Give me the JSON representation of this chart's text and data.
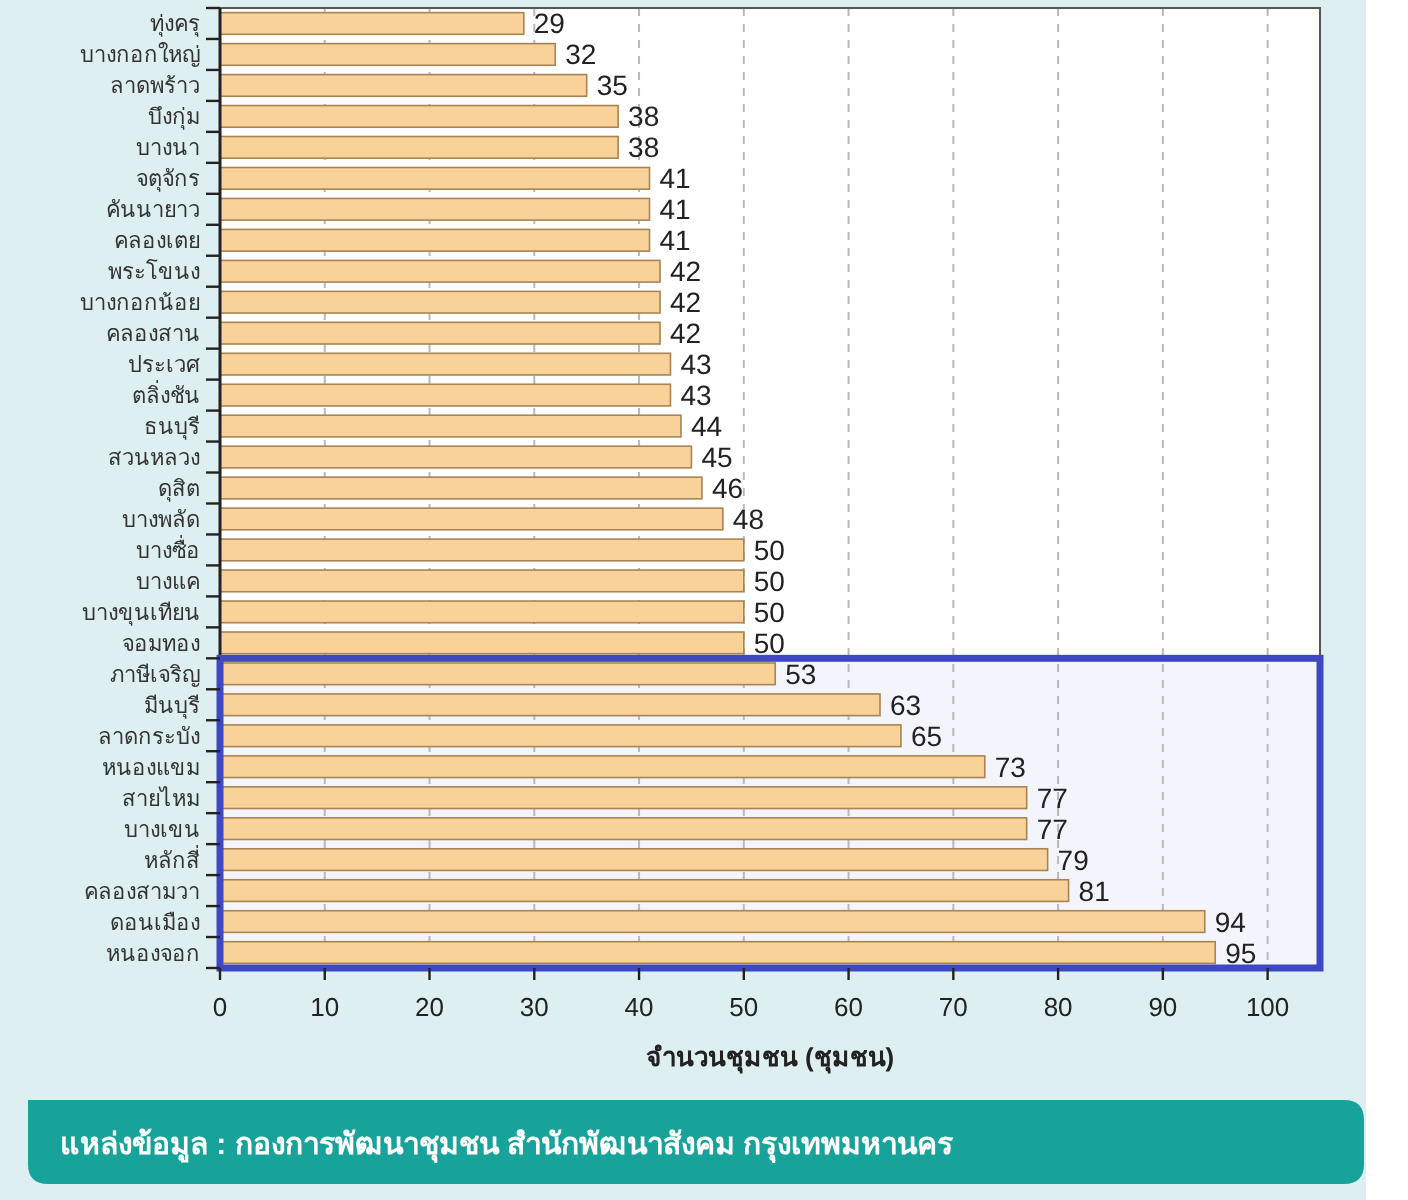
{
  "chart_data": {
    "type": "bar",
    "orientation": "horizontal",
    "categories": [
      "ทุ่งครุ",
      "บางกอกใหญ่",
      "ลาดพร้าว",
      "บึงกุ่ม",
      "บางนา",
      "จตุจักร",
      "คันนายาว",
      "คลองเตย",
      "พระโขนง",
      "บางกอกน้อย",
      "คลองสาน",
      "ประเวศ",
      "ตลิ่งชัน",
      "ธนบุรี",
      "สวนหลวง",
      "ดุสิต",
      "บางพลัด",
      "บางซื่อ",
      "บางแค",
      "บางขุนเทียน",
      "จอมทอง",
      "ภาษีเจริญ",
      "มีนบุรี",
      "ลาดกระบัง",
      "หนองแขม",
      "สายไหม",
      "บางเขน",
      "หลักสี่",
      "คลองสามวา",
      "ดอนเมือง",
      "หนองจอก"
    ],
    "values": [
      29,
      32,
      35,
      38,
      38,
      41,
      41,
      41,
      42,
      42,
      42,
      43,
      43,
      44,
      45,
      46,
      48,
      50,
      50,
      50,
      50,
      53,
      63,
      65,
      73,
      77,
      77,
      79,
      81,
      94,
      95
    ],
    "color": "#f9d29a",
    "xlim": [
      0,
      105
    ],
    "xticks": [
      0,
      10,
      20,
      30,
      40,
      50,
      60,
      70,
      80,
      90,
      100
    ],
    "xlabel": "จำนวนชุมชน (ชุมชน)",
    "grid": "x",
    "data_labels": true,
    "bands": [
      {
        "axis": "y",
        "from": "ภาษีเจริญ",
        "to": "หนองจอก",
        "color": "#3f48c4"
      }
    ],
    "annotations": [
      "แหล่งข้อมูล : กองการพัฒนาชุมชน สำนักพัฒนาสังคม กรุงเทพมหานคร"
    ]
  }
}
